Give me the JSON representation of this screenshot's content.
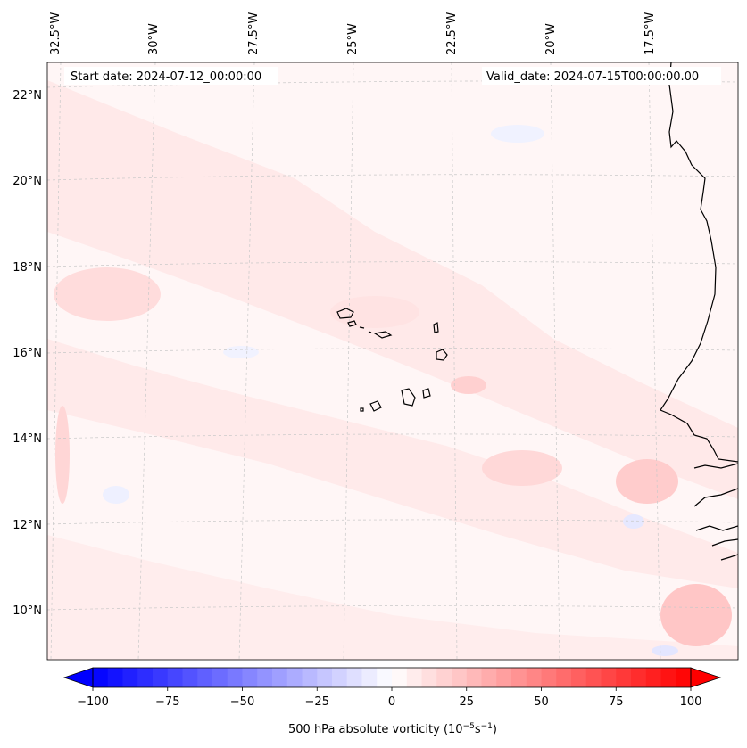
{
  "map": {
    "start_date": "Start date: 2024-07-12_00:00:00",
    "valid_date": "Valid_date: 2024-07-15T00:00:00.00",
    "longitude_labels": [
      "32.5°W",
      "30°W",
      "27.5°W",
      "25°W",
      "22.5°W",
      "20°W",
      "17.5°W"
    ],
    "latitude_labels": [
      "22°N",
      "20°N",
      "18°N",
      "16°N",
      "14°N",
      "12°N",
      "10°N"
    ],
    "field": "500 hPa absolute vorticity",
    "gridlines": true
  },
  "colorbar": {
    "label": "500 hPa absolute vorticity (10",
    "label_exp1": "−5",
    "label_mid": "s",
    "label_exp2": "−1",
    "label_end": ")",
    "ticks": [
      "−100",
      "−75",
      "−50",
      "−25",
      "0",
      "25",
      "50",
      "75",
      "100"
    ],
    "range": [
      -100,
      100
    ],
    "levels": 40,
    "colormap": "bwr",
    "extend": "both",
    "colors": {
      "low": "#0000ff",
      "mid": "#ffffff",
      "high": "#ff0000"
    }
  }
}
